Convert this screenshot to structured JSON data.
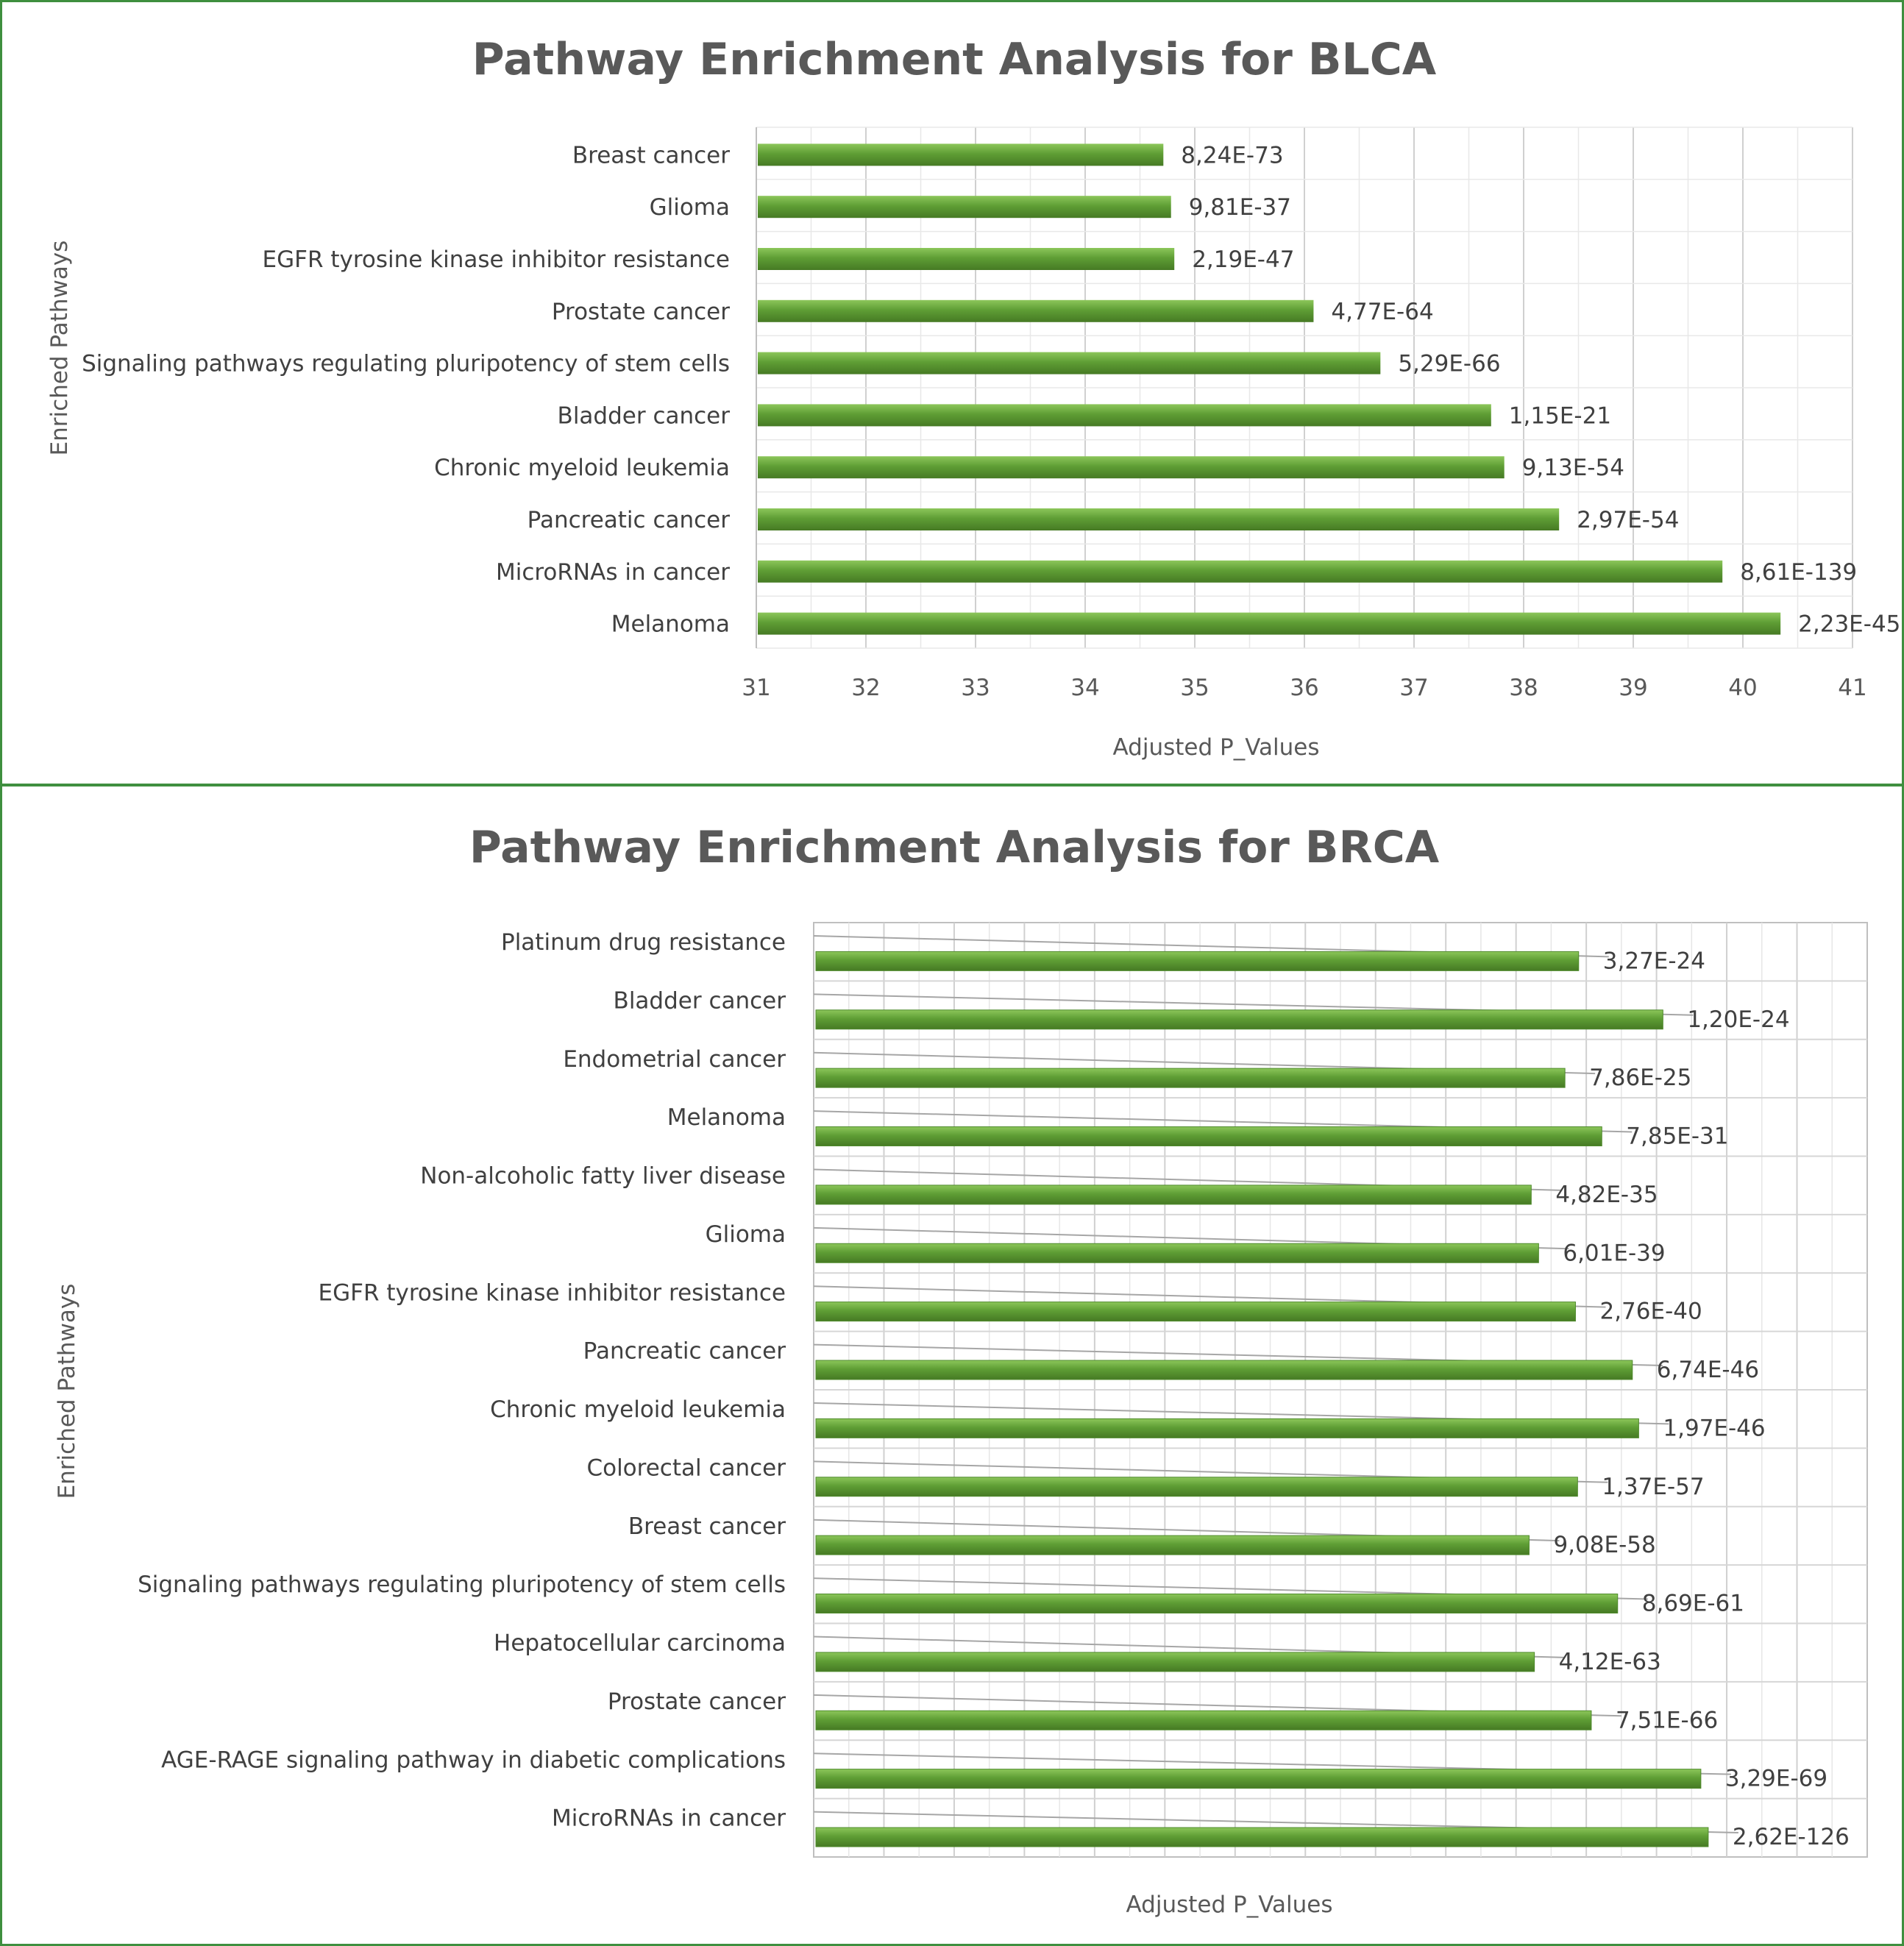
{
  "colors": {
    "bar": "#5f9e35",
    "bar_light": "#8cc65a",
    "bar_dark": "#467a24",
    "grid": "#d9d9d9",
    "frame": "#3f8f3f"
  },
  "chart_data": [
    {
      "type": "bar",
      "orientation": "horizontal",
      "title": "Pathway Enrichment Analysis for BLCA",
      "xlabel": "Adjusted P_Values",
      "ylabel": "Enriched Pathways",
      "xlim": [
        31,
        41
      ],
      "xticks": [
        "31",
        "32",
        "33",
        "34",
        "35",
        "36",
        "37",
        "38",
        "39",
        "40",
        "41"
      ],
      "grid": true,
      "legend": "none",
      "categories": [
        "Breast cancer",
        "Glioma",
        "EGFR tyrosine kinase inhibitor resistance",
        "Prostate cancer",
        "Signaling pathways regulating pluripotency of stem cells",
        "Bladder cancer",
        "Chronic myeloid leukemia",
        "Pancreatic cancer",
        "MicroRNAs in cancer",
        "Melanoma"
      ],
      "values": [
        34.7,
        34.77,
        34.8,
        36.07,
        36.68,
        37.69,
        37.81,
        38.31,
        39.8,
        40.33
      ],
      "data_labels": [
        "8,24E-73",
        "9,81E-37",
        "2,19E-47",
        "4,77E-64",
        "5,29E-66",
        "1,15E-21",
        "9,13E-54",
        "2,97E-54",
        "8,61E-139",
        "2,23E-45"
      ]
    },
    {
      "type": "bar",
      "orientation": "horizontal",
      "title": "Pathway Enrichment Analysis for BRCA",
      "xlabel": "Adjusted P_Values",
      "ylabel": "Enriched Pathways",
      "grid": true,
      "legend": "none",
      "categories": [
        "Platinum drug resistance",
        "Bladder cancer",
        "Endometrial cancer",
        "Melanoma",
        "Non-alcoholic fatty liver disease",
        "Glioma",
        "EGFR tyrosine kinase inhibitor resistance",
        "Pancreatic cancer",
        "Chronic myeloid leukemia",
        "Colorectal cancer",
        "Breast cancer",
        "Signaling pathways regulating pluripotency of stem cells",
        "Hepatocellular carcinoma",
        "Prostate cancer",
        "AGE-RAGE signaling pathway in diabetic complications",
        "MicroRNAs in cancer"
      ],
      "values": [
        0.724,
        0.804,
        0.711,
        0.746,
        0.679,
        0.686,
        0.721,
        0.775,
        0.781,
        0.723,
        0.677,
        0.761,
        0.682,
        0.736,
        0.84,
        0.847
      ],
      "data_labels": [
        "3,27E-24",
        "1,20E-24",
        "7,86E-25",
        "7,85E-31",
        "4,82E-35",
        "6,01E-39",
        "2,76E-40",
        "6,74E-46",
        "1,97E-46",
        "1,37E-57",
        "9,08E-58",
        "8,69E-61",
        "4,12E-63",
        "7,51E-66",
        "3,29E-69",
        "2,62E-126"
      ]
    }
  ]
}
